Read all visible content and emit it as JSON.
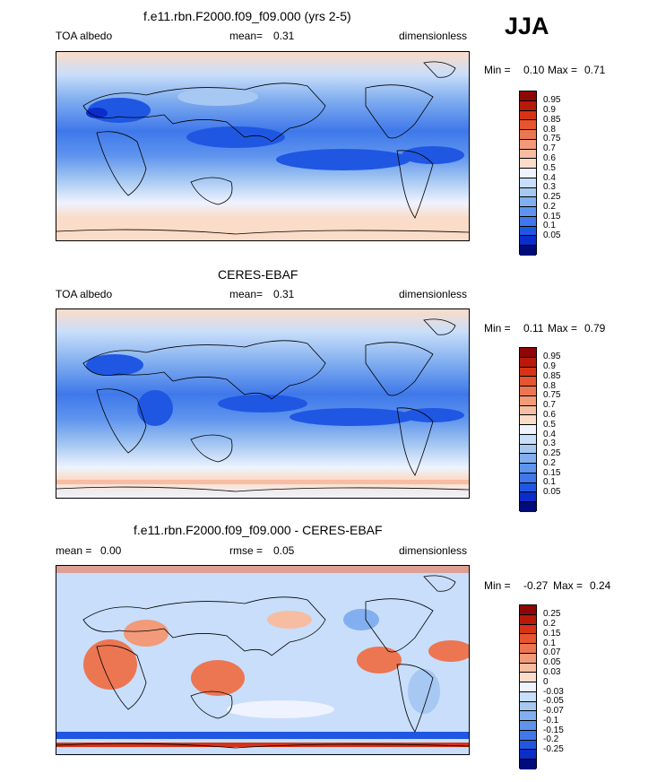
{
  "season": "JJA",
  "colors": {
    "albedo": [
      "#020b7a",
      "#0b2dca",
      "#1f57e3",
      "#3f78ea",
      "#5e94ee",
      "#82afef",
      "#a6c8f2",
      "#c8defa",
      "#eef3ff",
      "#fbdcc8",
      "#f7bda2",
      "#f29a79",
      "#ec7652",
      "#e65430",
      "#d63416",
      "#b81a09",
      "#8d0804"
    ],
    "diff": [
      "#020b7a",
      "#0b2dca",
      "#1f57e3",
      "#3f78ea",
      "#5e94ee",
      "#82afef",
      "#a6c8f2",
      "#c8defa",
      "#eef3ff",
      "#fbdcc8",
      "#f7bda2",
      "#f29a79",
      "#ec7652",
      "#e65430",
      "#d63416",
      "#b81a09",
      "#8d0804"
    ]
  },
  "panels": [
    {
      "title": "f.e11.rbn.F2000.f09_f09.000 (yrs 2-5)",
      "left_label": "TOA albedo",
      "stat_label": "mean=",
      "stat_value": "0.31",
      "units": "dimensionless",
      "min_label": "Min =",
      "min_value": "0.10",
      "max_label": "Max =",
      "max_value": "0.71",
      "cbar_labels": [
        "0.95",
        "0.9",
        "0.85",
        "0.8",
        "0.75",
        "0.7",
        "0.6",
        "0.5",
        "0.4",
        "0.3",
        "0.25",
        "0.2",
        "0.15",
        "0.1",
        "0.05"
      ]
    },
    {
      "title": "CERES-EBAF",
      "left_label": "TOA albedo",
      "stat_label": "mean=",
      "stat_value": "0.31",
      "units": "dimensionless",
      "min_label": "Min =",
      "min_value": "0.11",
      "max_label": "Max =",
      "max_value": "0.79",
      "cbar_labels": [
        "0.95",
        "0.9",
        "0.85",
        "0.8",
        "0.75",
        "0.7",
        "0.6",
        "0.5",
        "0.4",
        "0.3",
        "0.25",
        "0.2",
        "0.15",
        "0.1",
        "0.05"
      ]
    },
    {
      "title": "f.e11.rbn.F2000.f09_f09.000 - CERES-EBAF",
      "left_label": "mean =",
      "left_value": "0.00",
      "stat_label": "rmse =",
      "stat_value": "0.05",
      "units": "dimensionless",
      "min_label": "Min =",
      "min_value": "-0.27",
      "max_label": "Max =",
      "max_value": "0.24",
      "cbar_labels": [
        "0.25",
        "0.2",
        "0.15",
        "0.1",
        "0.07",
        "0.05",
        "0.03",
        "0",
        "-0.03",
        "-0.05",
        "-0.07",
        "-0.1",
        "-0.15",
        "-0.2",
        "-0.25"
      ]
    }
  ]
}
